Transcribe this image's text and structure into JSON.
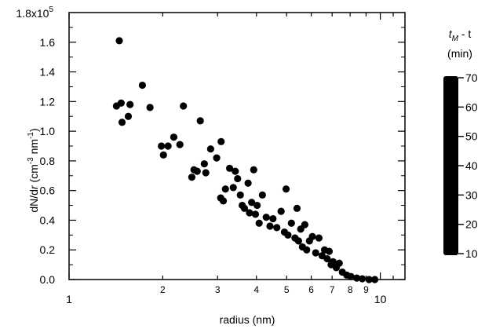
{
  "chart_data": {
    "type": "scatter",
    "xlabel": "radius (nm)",
    "ylabel_parts": [
      "dN/d",
      "r",
      " (cm",
      "-3",
      " nm",
      "-1",
      ")"
    ],
    "x_scale": "log",
    "xlim": [
      1,
      12
    ],
    "ylim": [
      0,
      180000
    ],
    "x_ticks": [
      {
        "value": 1,
        "label": "1"
      },
      {
        "value": 2,
        "label": "2"
      },
      {
        "value": 3,
        "label": "3"
      },
      {
        "value": 4,
        "label": "4"
      },
      {
        "value": 5,
        "label": "5"
      },
      {
        "value": 6,
        "label": "6"
      },
      {
        "value": 7,
        "label": "7"
      },
      {
        "value": 8,
        "label": "8"
      },
      {
        "value": 9,
        "label": "9"
      },
      {
        "value": 10,
        "label": "10"
      }
    ],
    "y_ticks": [
      {
        "value": 0,
        "label": "0.0"
      },
      {
        "value": 20000,
        "label": "0.2"
      },
      {
        "value": 40000,
        "label": "0.4"
      },
      {
        "value": 60000,
        "label": "0.6"
      },
      {
        "value": 80000,
        "label": "0.8"
      },
      {
        "value": 100000,
        "label": "1.0"
      },
      {
        "value": 120000,
        "label": "1.2"
      },
      {
        "value": 140000,
        "label": "1.4"
      },
      {
        "value": 160000,
        "label": "1.6"
      }
    ],
    "y_top_label": {
      "mantissa": "1.8x10",
      "exponent": "5"
    },
    "colorbar": {
      "title_var": "t",
      "title_sub": "M",
      "title_rest": " - t",
      "title_line2": "(min)",
      "range": [
        10,
        70
      ],
      "ticks": [
        "10",
        "20",
        "30",
        "40",
        "50",
        "60",
        "70"
      ],
      "color": "#000000"
    },
    "marker_color": "#000000",
    "grid": false,
    "points": [
      [
        1.45,
        161000
      ],
      [
        1.42,
        117000
      ],
      [
        1.47,
        119000
      ],
      [
        1.48,
        106000
      ],
      [
        1.55,
        110000
      ],
      [
        1.57,
        118000
      ],
      [
        1.72,
        131000
      ],
      [
        1.82,
        116000
      ],
      [
        1.98,
        90000
      ],
      [
        2.01,
        84000
      ],
      [
        2.08,
        90000
      ],
      [
        2.17,
        96000
      ],
      [
        2.27,
        91000
      ],
      [
        2.33,
        117000
      ],
      [
        2.48,
        69000
      ],
      [
        2.52,
        74000
      ],
      [
        2.58,
        73000
      ],
      [
        2.64,
        107000
      ],
      [
        2.72,
        78000
      ],
      [
        2.75,
        72000
      ],
      [
        2.85,
        88000
      ],
      [
        2.98,
        82000
      ],
      [
        3.08,
        93000
      ],
      [
        3.07,
        55000
      ],
      [
        3.13,
        53000
      ],
      [
        3.18,
        61000
      ],
      [
        3.28,
        75000
      ],
      [
        3.37,
        62000
      ],
      [
        3.42,
        73000
      ],
      [
        3.48,
        68000
      ],
      [
        3.55,
        57000
      ],
      [
        3.6,
        50000
      ],
      [
        3.66,
        48000
      ],
      [
        3.76,
        65000
      ],
      [
        3.8,
        45000
      ],
      [
        3.86,
        52000
      ],
      [
        3.92,
        74000
      ],
      [
        3.97,
        44000
      ],
      [
        4.02,
        50000
      ],
      [
        4.08,
        38000
      ],
      [
        4.18,
        57000
      ],
      [
        4.3,
        42000
      ],
      [
        4.42,
        36000
      ],
      [
        4.52,
        41000
      ],
      [
        4.65,
        35000
      ],
      [
        4.8,
        46000
      ],
      [
        4.92,
        32000
      ],
      [
        4.98,
        61000
      ],
      [
        5.05,
        30000
      ],
      [
        5.18,
        38000
      ],
      [
        5.32,
        28000
      ],
      [
        5.4,
        48000
      ],
      [
        5.46,
        26000
      ],
      [
        5.55,
        34000
      ],
      [
        5.62,
        22000
      ],
      [
        5.72,
        37000
      ],
      [
        5.8,
        20000
      ],
      [
        5.92,
        26000
      ],
      [
        6.05,
        29000
      ],
      [
        6.2,
        18000
      ],
      [
        6.35,
        28000
      ],
      [
        6.5,
        16000
      ],
      [
        6.62,
        20000
      ],
      [
        6.75,
        14000
      ],
      [
        6.85,
        19000
      ],
      [
        6.95,
        10000
      ],
      [
        7.05,
        12000
      ],
      [
        7.22,
        8000
      ],
      [
        7.38,
        11000
      ],
      [
        7.55,
        5000
      ],
      [
        7.8,
        3000
      ],
      [
        8.05,
        2000
      ],
      [
        8.4,
        1000
      ],
      [
        8.75,
        500
      ],
      [
        9.2,
        0
      ],
      [
        9.6,
        0
      ]
    ]
  }
}
